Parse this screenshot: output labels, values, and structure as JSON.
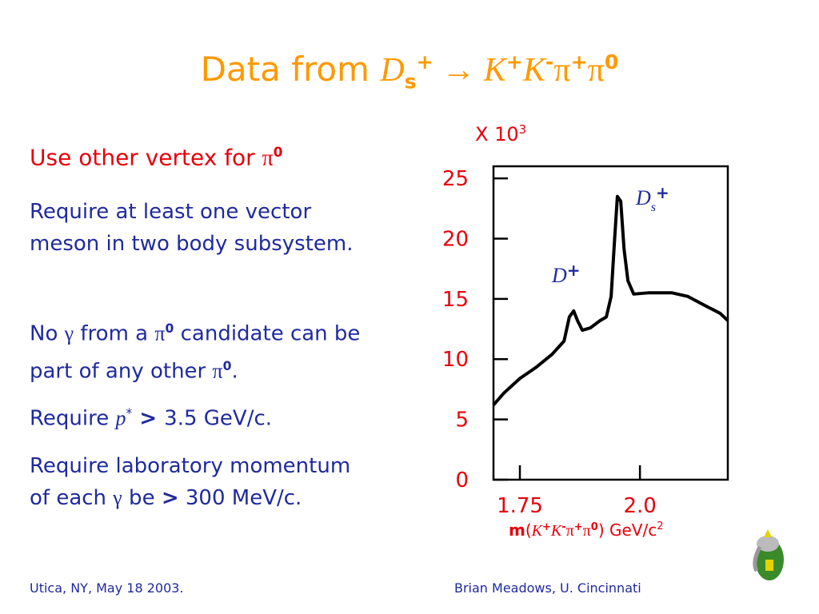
{
  "title": [
    "Data from ",
    "D",
    "s",
    "+",
    " → ",
    "K",
    "+",
    "K",
    "-",
    "π",
    "+",
    "π",
    "0"
  ],
  "bullets": [
    [
      "Use other vertex for ",
      "π",
      "0"
    ],
    [
      "Require at least one vector meson in two body subsystem."
    ],
    [
      "No ",
      "γ",
      " from a ",
      "π",
      "0",
      " candidate can be part of any other ",
      "π",
      "0",
      "."
    ],
    [
      "Require ",
      "p",
      "*",
      " > ",
      "3.5 GeV/c."
    ],
    [
      "Require laboratory momentum of each ",
      "γ",
      " be ",
      ">",
      " 300 MeV/c."
    ]
  ],
  "footer": {
    "left": "Utica, NY, May 18 2003.",
    "right": "Brian Meadows, U. Cincinnati"
  },
  "chart_data": {
    "type": "line",
    "y_multiplier": [
      "X 10",
      "3"
    ],
    "xlabel": [
      "m",
      "(",
      "K",
      "+",
      "K",
      "-",
      "π",
      "+",
      "π",
      "0",
      ") GeV/c",
      "2"
    ],
    "annotations": [
      [
        "D",
        "s",
        "+"
      ],
      [
        "D",
        "+"
      ]
    ],
    "x": [
      1.695,
      1.717,
      1.75,
      1.783,
      1.817,
      1.842,
      1.853,
      1.862,
      1.87,
      1.88,
      1.897,
      1.917,
      1.93,
      1.94,
      1.947,
      1.953,
      1.96,
      1.967,
      1.975,
      1.987,
      2.017,
      2.067,
      2.1,
      2.133,
      2.167,
      2.183
    ],
    "values": [
      6.2,
      7.2,
      8.4,
      9.3,
      10.4,
      11.5,
      13.5,
      14.0,
      13.2,
      12.4,
      12.6,
      13.2,
      13.5,
      15.2,
      19.8,
      23.5,
      23.1,
      19.1,
      16.5,
      15.4,
      15.5,
      15.5,
      15.2,
      14.5,
      13.8,
      13.2
    ],
    "color": "#000000",
    "xlim": [
      1.695,
      2.183
    ],
    "xticks": [
      1.75,
      {
        "value": 2,
        "label": "2.0"
      }
    ],
    "ylim": [
      0,
      26
    ],
    "yticks": [
      0,
      5,
      10,
      15,
      20,
      25
    ]
  }
}
